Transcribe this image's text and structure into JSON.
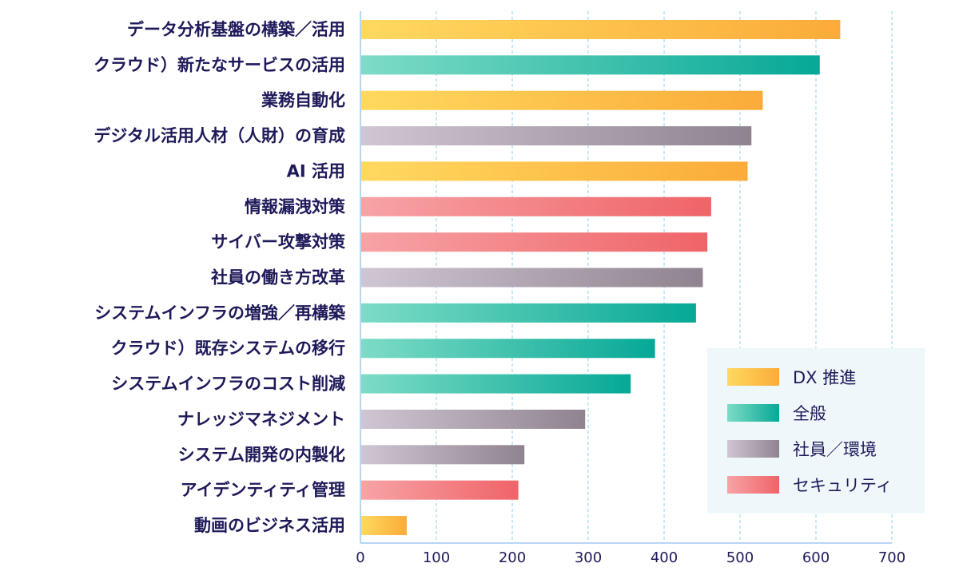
{
  "chart_data": {
    "type": "bar",
    "orientation": "horizontal",
    "title": "",
    "xlabel": "",
    "ylabel": "",
    "xlim": [
      0,
      700
    ],
    "xticks": [
      0,
      100,
      200,
      300,
      400,
      500,
      600,
      700
    ],
    "grid": true,
    "legend_position": "bottom-right",
    "groups": [
      {
        "key": "dx",
        "name": "DX 推進",
        "colors": [
          "#ffd95e",
          "#fbab3a"
        ]
      },
      {
        "key": "general",
        "name": "全般",
        "colors": [
          "#7ddcc6",
          "#06a896"
        ]
      },
      {
        "key": "staff",
        "name": "社員／環境",
        "colors": [
          "#d0c6d3",
          "#8f838f"
        ]
      },
      {
        "key": "security",
        "name": "セキュリティ",
        "colors": [
          "#f7a3a6",
          "#ef6468"
        ]
      }
    ],
    "bars": [
      {
        "label": "データ分析基盤の構築／活用",
        "value": 632,
        "group": "dx"
      },
      {
        "label": "クラウド）新たなサービスの活用",
        "value": 605,
        "group": "general"
      },
      {
        "label": "業務自動化",
        "value": 530,
        "group": "dx"
      },
      {
        "label": "デジタル活用人材（人財）の育成",
        "value": 515,
        "group": "staff"
      },
      {
        "label": "AI 活用",
        "value": 510,
        "group": "dx"
      },
      {
        "label": "情報漏洩対策",
        "value": 462,
        "group": "security"
      },
      {
        "label": "サイバー攻撃対策",
        "value": 457,
        "group": "security"
      },
      {
        "label": "社員の働き方改革",
        "value": 451,
        "group": "staff"
      },
      {
        "label": "システムインフラの増強／再構築",
        "value": 442,
        "group": "general"
      },
      {
        "label": "クラウド）既存システムの移行",
        "value": 388,
        "group": "general"
      },
      {
        "label": "システムインフラのコスト削減",
        "value": 356,
        "group": "general"
      },
      {
        "label": "ナレッジマネジメント",
        "value": 296,
        "group": "staff"
      },
      {
        "label": "システム開発の内製化",
        "value": 216,
        "group": "staff"
      },
      {
        "label": "アイデンティティ管理",
        "value": 208,
        "group": "security"
      },
      {
        "label": "動画のビジネス活用",
        "value": 61,
        "group": "dx"
      }
    ],
    "colors": {
      "text": "#1e1a5a",
      "grid": "#8fd3ec",
      "legend_bg": "#eef7f9",
      "axis": "#9fc8ee"
    }
  }
}
